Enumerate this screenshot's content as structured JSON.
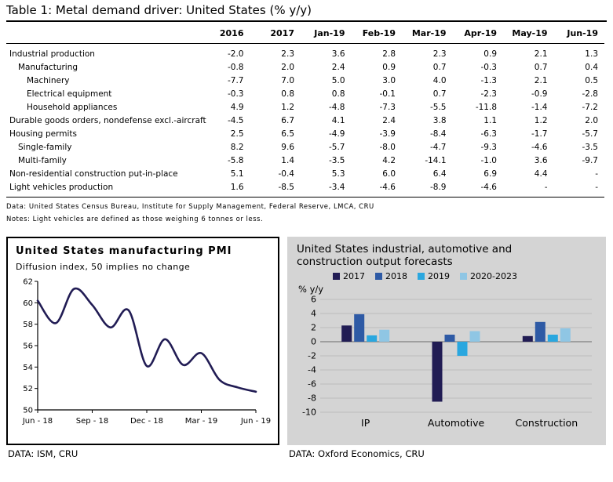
{
  "chart_data": [
    {
      "type": "table",
      "title": "Table 1: Metal demand driver: United States (% y/y)",
      "columns": [
        "2016",
        "2017",
        "Jan-19",
        "Feb-19",
        "Mar-19",
        "Apr-19",
        "May-19",
        "Jun-19"
      ],
      "rows": [
        {
          "label": "Industrial production",
          "indent": 0,
          "values": [
            "-2.0",
            "2.3",
            "3.6",
            "2.8",
            "2.3",
            "0.9",
            "2.1",
            "1.3"
          ]
        },
        {
          "label": "Manufacturing",
          "indent": 1,
          "values": [
            "-0.8",
            "2.0",
            "2.4",
            "0.9",
            "0.7",
            "-0.3",
            "0.7",
            "0.4"
          ]
        },
        {
          "label": "Machinery",
          "indent": 2,
          "values": [
            "-7.7",
            "7.0",
            "5.0",
            "3.0",
            "4.0",
            "-1.3",
            "2.1",
            "0.5"
          ]
        },
        {
          "label": "Electrical equipment",
          "indent": 2,
          "values": [
            "-0.3",
            "0.8",
            "0.8",
            "-0.1",
            "0.7",
            "-2.3",
            "-0.9",
            "-2.8"
          ]
        },
        {
          "label": "Household appliances",
          "indent": 2,
          "values": [
            "4.9",
            "1.2",
            "-4.8",
            "-7.3",
            "-5.5",
            "-11.8",
            "-1.4",
            "-7.2"
          ]
        },
        {
          "label": "Durable goods orders, nondefense excl.-aircraft",
          "indent": 0,
          "values": [
            "-4.5",
            "6.7",
            "4.1",
            "2.4",
            "3.8",
            "1.1",
            "1.2",
            "2.0"
          ]
        },
        {
          "label": "Housing permits",
          "indent": 0,
          "values": [
            "2.5",
            "6.5",
            "-4.9",
            "-3.9",
            "-8.4",
            "-6.3",
            "-1.7",
            "-5.7"
          ]
        },
        {
          "label": "Single-family",
          "indent": 1,
          "values": [
            "8.2",
            "9.6",
            "-5.7",
            "-8.0",
            "-4.7",
            "-9.3",
            "-4.6",
            "-3.5"
          ]
        },
        {
          "label": "Multi-family",
          "indent": 1,
          "values": [
            "-5.8",
            "1.4",
            "-3.5",
            "4.2",
            "-14.1",
            "-1.0",
            "3.6",
            "-9.7"
          ]
        },
        {
          "label": "Non-residential construction put-in-place",
          "indent": 0,
          "values": [
            "5.1",
            "-0.4",
            "5.3",
            "6.0",
            "6.4",
            "6.9",
            "4.4",
            "-"
          ]
        },
        {
          "label": "Light vehicles production",
          "indent": 0,
          "values": [
            "1.6",
            "-8.5",
            "-3.4",
            "-4.6",
            "-8.9",
            "-4.6",
            "-",
            "-"
          ]
        }
      ],
      "source_note": "Data: United States Census Bureau, Institute for Supply Management, Federal Reserve, LMCA, CRU",
      "notes": "Notes: Light vehicles are defined as those weighing 6 tonnes or less."
    },
    {
      "type": "line",
      "title": "United States manufacturing PMI",
      "subtitle": "Diffusion index, 50 implies no change",
      "x": [
        "Jun-18",
        "Jul-18",
        "Aug-18",
        "Sep-18",
        "Oct-18",
        "Nov-18",
        "Dec-18",
        "Jan-19",
        "Feb-19",
        "Mar-19",
        "Apr-19",
        "May-19",
        "Jun-19"
      ],
      "values": [
        60.2,
        58.1,
        61.3,
        59.8,
        57.7,
        59.3,
        54.1,
        56.6,
        54.2,
        55.3,
        52.8,
        52.1,
        51.7
      ],
      "ylim": [
        50,
        62
      ],
      "yticks": [
        50,
        52,
        54,
        56,
        58,
        60,
        62
      ],
      "xtick_labels": [
        "Jun - 18",
        "Sep - 18",
        "Dec - 18",
        "Mar - 19",
        "Jun - 19"
      ],
      "xtick_positions": [
        0,
        3,
        6,
        9,
        12
      ],
      "line_color": "#211c54",
      "source": "DATA: ISM, CRU"
    },
    {
      "type": "bar",
      "title": "United States industrial, automotive and construction output forecasts",
      "ylabel": "% y/y",
      "categories": [
        "IP",
        "Automotive",
        "Construction"
      ],
      "series": [
        {
          "name": "2017",
          "color": "#211c54",
          "values": [
            2.3,
            -8.5,
            0.8
          ]
        },
        {
          "name": "2018",
          "color": "#2e5aa5",
          "values": [
            3.9,
            1.0,
            2.8
          ]
        },
        {
          "name": "2019",
          "color": "#2aa7df",
          "values": [
            0.9,
            -2.0,
            1.0
          ]
        },
        {
          "name": "2020-2023",
          "color": "#8fc6e4",
          "values": [
            1.7,
            1.5,
            1.9
          ]
        }
      ],
      "ylim": [
        -10,
        6
      ],
      "yticks": [
        -10,
        -8,
        -6,
        -4,
        -2,
        0,
        2,
        4,
        6
      ],
      "grid_color": "#bdbdbd",
      "zero_line_color": "#7f7f7f",
      "panel_bg": "#d4d4d4",
      "legend_position": "top",
      "source": "DATA: Oxford Economics, CRU"
    }
  ]
}
